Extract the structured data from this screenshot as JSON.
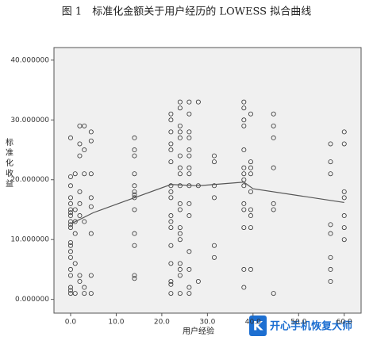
{
  "chart_data": {
    "type": "scatter",
    "title": "图 1　标准化金额关于用户经历的 LOWESS 拟合曲线",
    "x_label": "用户经验",
    "y_label": "标准化收益",
    "watermark": "开心手机恢复大师",
    "xlim": [
      -3.65,
      63.7
    ],
    "ylim": [
      -2.3,
      42.1
    ],
    "xticks": [
      {
        "value": 0,
        "label": "0.0"
      },
      {
        "value": 10,
        "label": "10.0"
      },
      {
        "value": 20,
        "label": "20.0"
      },
      {
        "value": 30,
        "label": "30.0"
      },
      {
        "value": 40,
        "label": "40.0"
      },
      {
        "value": 50,
        "label": "50.0"
      },
      {
        "value": 60,
        "label": "60.0"
      }
    ],
    "yticks": [
      {
        "value": 0,
        "label": "0.000000"
      },
      {
        "value": 10,
        "label": "10.000000"
      },
      {
        "value": 20,
        "label": "20.000000"
      },
      {
        "value": 30,
        "label": "30.000000"
      },
      {
        "value": 40,
        "label": "40.000000"
      }
    ],
    "background": "#f0f0f0",
    "series": [
      {
        "type": "scatter",
        "color": "#333333",
        "x": [
          0,
          0,
          0,
          0,
          0,
          0,
          0,
          0,
          0,
          0,
          0,
          0,
          0,
          0,
          0,
          0,
          0,
          0,
          0,
          0,
          1,
          1,
          1,
          1,
          1,
          1,
          2,
          2,
          2,
          2,
          2,
          2,
          2,
          2,
          3,
          3,
          3,
          3,
          3,
          3,
          4.5,
          4.5,
          4.5,
          4.5,
          4.5,
          4.5,
          4.5,
          4.5,
          14,
          14,
          14,
          14,
          14,
          14,
          14,
          14,
          14,
          14,
          14,
          14,
          14,
          22,
          22,
          22,
          22,
          22,
          22,
          22,
          22,
          22,
          22,
          22,
          22,
          22,
          22,
          22,
          22,
          22,
          24,
          24,
          24,
          24,
          24,
          24,
          24,
          24,
          24,
          24,
          24,
          24,
          24,
          24,
          24,
          24,
          24,
          24,
          26,
          26,
          26,
          26,
          26,
          26,
          26,
          26,
          26,
          26,
          26,
          26,
          26,
          26,
          26,
          28,
          28,
          28,
          31.5,
          31.5,
          31.5,
          31.5,
          31.5,
          31.5,
          38,
          38,
          38,
          38,
          38,
          38,
          38,
          38,
          38,
          38,
          38,
          38,
          38,
          38,
          39.5,
          39.5,
          39.5,
          39.5,
          39.5,
          39.5,
          39.5,
          39.5,
          39.5,
          44.5,
          44.5,
          44.5,
          44.5,
          44.5,
          44.5,
          44.5,
          57,
          57,
          57,
          57,
          57,
          57,
          57,
          57,
          60,
          60,
          60,
          60,
          60,
          60,
          60
        ],
        "values": [
          27,
          20.5,
          19,
          17,
          16,
          15,
          14.5,
          14,
          13,
          12.5,
          12,
          9.5,
          9,
          8,
          7,
          5,
          4,
          2,
          1.5,
          1,
          21,
          15,
          13,
          11,
          6,
          1,
          29,
          26,
          24,
          18,
          16,
          14,
          4,
          3,
          29,
          25,
          21,
          13,
          2,
          1,
          28,
          26.5,
          21,
          17,
          15.5,
          11,
          4,
          1,
          27,
          25,
          24,
          21,
          19,
          18,
          17.5,
          17,
          15,
          11,
          9,
          4,
          3.5,
          31,
          30,
          28,
          26,
          25,
          23,
          19,
          18,
          17,
          14,
          13,
          12,
          9,
          6,
          3,
          2.5,
          1,
          33,
          32,
          29,
          28,
          27,
          24,
          22,
          21,
          19,
          16,
          15,
          12,
          11,
          10,
          6,
          5,
          4,
          1,
          33,
          31,
          28,
          27,
          25,
          24,
          22,
          21,
          19,
          16,
          14,
          8,
          5,
          2,
          1,
          33,
          19,
          3,
          24,
          23,
          19,
          17,
          9,
          7,
          33,
          32,
          30,
          29,
          25,
          22,
          21,
          20,
          19,
          16,
          15,
          12,
          5,
          2,
          31,
          23,
          22,
          21,
          18,
          15,
          14,
          12,
          5,
          31,
          29,
          27,
          22,
          16,
          15,
          1,
          26,
          23,
          21,
          12.5,
          11,
          7,
          5,
          3,
          28,
          26,
          18,
          17,
          14,
          12,
          10
        ]
      },
      {
        "type": "line",
        "color": "#555555",
        "x": [
          0,
          5,
          14,
          22,
          28,
          38,
          40,
          60
        ],
        "values": [
          12.6,
          14.5,
          17,
          19.2,
          19,
          19.6,
          18.5,
          16.2
        ]
      }
    ]
  }
}
